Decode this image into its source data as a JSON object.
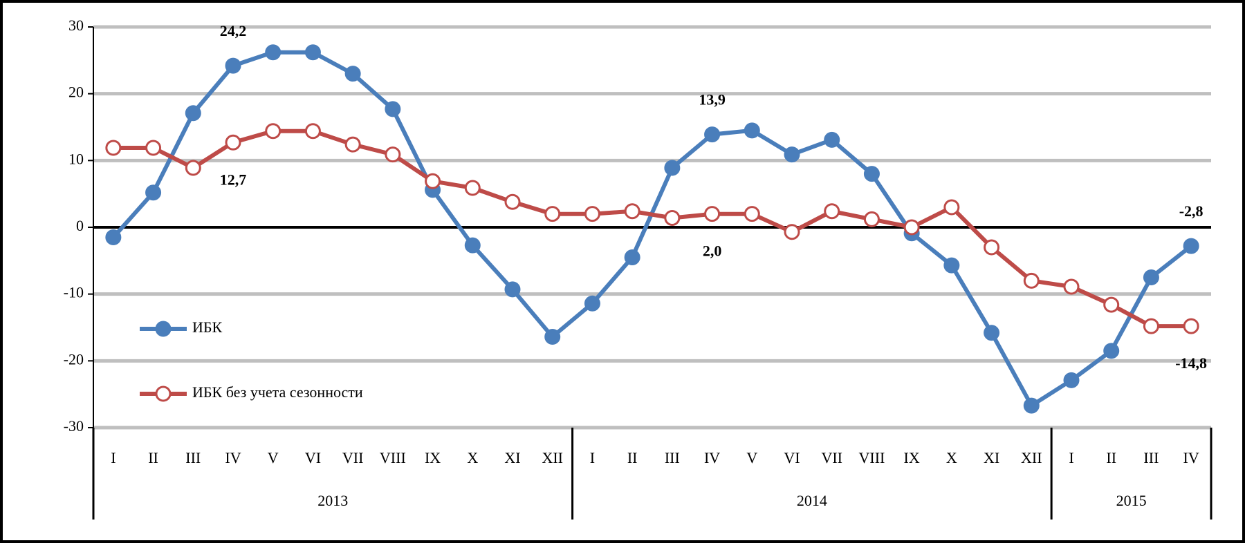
{
  "chart_data": {
    "type": "line",
    "groups": [
      {
        "name": "2013",
        "categories": [
          "I",
          "II",
          "III",
          "IV",
          "V",
          "VI",
          "VII",
          "VIII",
          "IX",
          "X",
          "XI",
          "XII"
        ]
      },
      {
        "name": "2014",
        "categories": [
          "I",
          "II",
          "III",
          "IV",
          "V",
          "VI",
          "VII",
          "VIII",
          "IX",
          "X",
          "XI",
          "XII"
        ]
      },
      {
        "name": "2015",
        "categories": [
          "I",
          "II",
          "III",
          "IV"
        ]
      }
    ],
    "series": [
      {
        "name": "ИБК",
        "color": "#4a7ebb",
        "marker_fill": "#4a7ebb",
        "values": [
          -1.5,
          5.2,
          17.1,
          24.2,
          26.2,
          26.2,
          23.0,
          17.7,
          5.6,
          -2.7,
          -9.3,
          -16.4,
          -11.4,
          -4.5,
          8.9,
          13.9,
          14.5,
          10.9,
          13.1,
          8.0,
          -0.9,
          -5.7,
          -15.8,
          -26.7,
          -22.9,
          -18.5,
          -7.5,
          -2.8
        ],
        "value_labels": [
          null,
          null,
          null,
          "24,2",
          null,
          null,
          null,
          null,
          null,
          null,
          null,
          null,
          null,
          null,
          null,
          "13,9",
          null,
          null,
          null,
          null,
          null,
          null,
          null,
          null,
          null,
          null,
          null,
          "-2,8"
        ]
      },
      {
        "name": "ИБК без учета сезонности",
        "color": "#be4b48",
        "marker_fill": "#ffffff",
        "values": [
          11.9,
          11.9,
          8.9,
          12.7,
          14.4,
          14.4,
          12.4,
          10.9,
          6.9,
          5.9,
          3.8,
          2.0,
          2.0,
          2.4,
          1.4,
          2.0,
          2.0,
          -0.7,
          2.4,
          1.2,
          0.0,
          3.0,
          -3.0,
          -8.0,
          -8.9,
          -11.6,
          -14.8,
          -14.8
        ],
        "value_labels": [
          null,
          null,
          null,
          "12,7",
          null,
          null,
          null,
          null,
          null,
          null,
          null,
          null,
          null,
          null,
          null,
          "2,0",
          null,
          null,
          null,
          null,
          null,
          null,
          null,
          null,
          null,
          null,
          null,
          "-14,8"
        ]
      }
    ],
    "ylim": [
      -30,
      30
    ],
    "yticks": [
      -30,
      -20,
      -10,
      0,
      10,
      20,
      30
    ],
    "grid": true,
    "legend": "lower-left"
  }
}
